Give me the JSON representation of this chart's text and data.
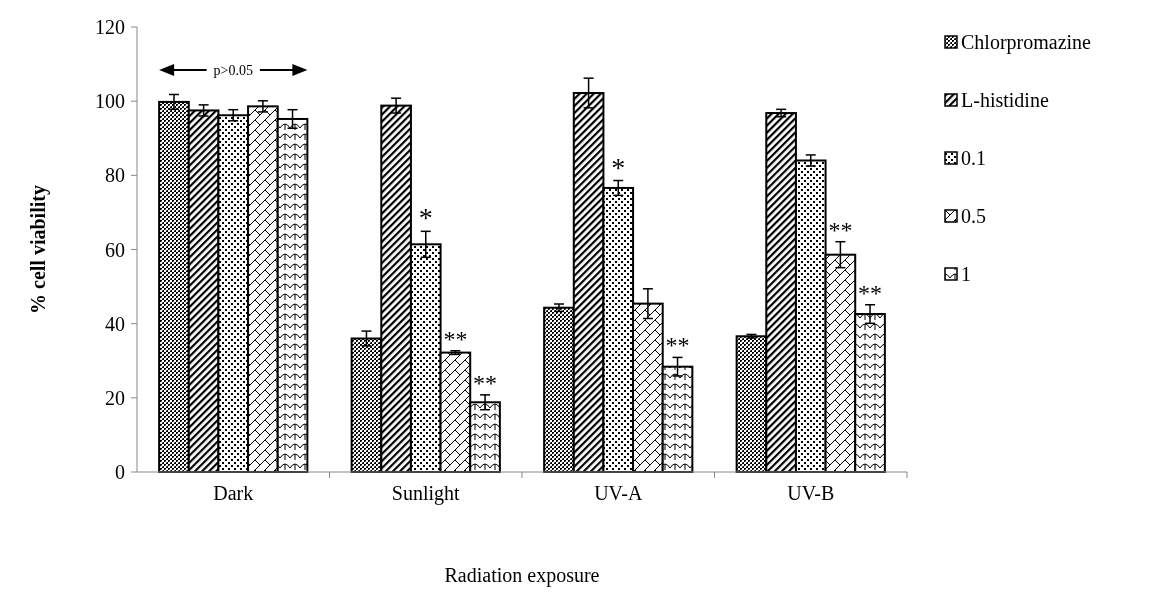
{
  "chart_data": {
    "type": "bar",
    "xlabel": "Radiation exposure",
    "ylabel": "% cell viability",
    "categories": [
      "Dark",
      "Sunlight",
      "UV-A",
      "UV-B"
    ],
    "series": [
      {
        "name": "Chlorpromazine",
        "color": "#000000",
        "values": [
          99.8,
          36,
          44.3,
          36.6
        ],
        "errors": [
          2,
          2,
          1,
          0.5
        ]
      },
      {
        "name": "L-histidine",
        "color": "#000000",
        "values": [
          97.5,
          98.8,
          102.2,
          96.8
        ],
        "errors": [
          1.5,
          2,
          4,
          1
        ]
      },
      {
        "name": "0.1",
        "color": "#000000",
        "values": [
          96.2,
          61.4,
          76.6,
          84
        ],
        "errors": [
          1.5,
          3.5,
          2,
          1.5
        ],
        "value_labels": [
          null,
          "*",
          "*",
          null
        ]
      },
      {
        "name": "0.5",
        "color": "#000000",
        "values": [
          98.6,
          32.2,
          45.4,
          58.6
        ],
        "errors": [
          1.5,
          0.5,
          4,
          3.5
        ],
        "value_labels": [
          null,
          "**",
          null,
          "**"
        ]
      },
      {
        "name": "1",
        "color": "#000000",
        "values": [
          95.2,
          18.8,
          28.4,
          42.6
        ],
        "errors": [
          2.5,
          2,
          2.5,
          2.5
        ],
        "value_labels": [
          null,
          "**",
          "**",
          "**"
        ]
      }
    ],
    "annotations": [
      "p>0.05"
    ],
    "ylim": [
      0,
      120
    ],
    "yticks": [
      0,
      20,
      40,
      60,
      80,
      100,
      120
    ],
    "grid": false,
    "legend": "right"
  }
}
